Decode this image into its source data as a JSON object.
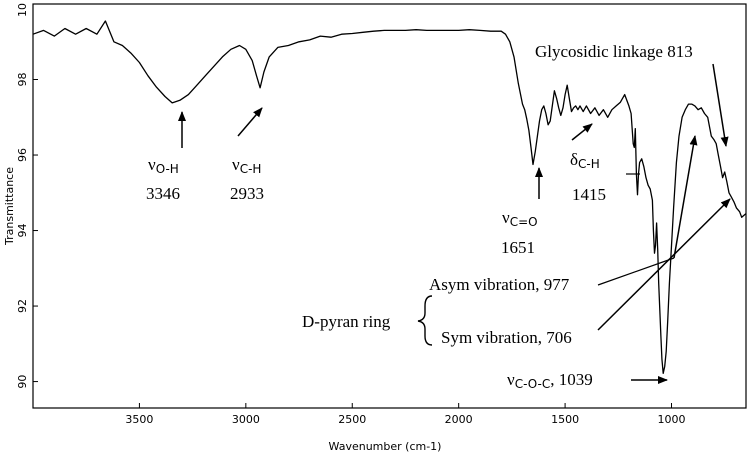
{
  "chart_data": {
    "type": "line",
    "xlabel": "Wavenumber (cm-1)",
    "ylabel": "Transmittance",
    "xlim": [
      4000,
      650
    ],
    "ylim": [
      89.3,
      100
    ],
    "xticks": [
      3500,
      3000,
      2500,
      2000,
      1500,
      1000
    ],
    "yticks": [
      90,
      92,
      94,
      96,
      98
    ],
    "top_tick_fragment": "10",
    "grid": false,
    "series": [
      {
        "points": [
          [
            4000,
            99.2
          ],
          [
            3950,
            99.3
          ],
          [
            3900,
            99.15
          ],
          [
            3850,
            99.35
          ],
          [
            3800,
            99.2
          ],
          [
            3750,
            99.35
          ],
          [
            3700,
            99.2
          ],
          [
            3660,
            99.55
          ],
          [
            3620,
            99.0
          ],
          [
            3580,
            98.9
          ],
          [
            3540,
            98.7
          ],
          [
            3500,
            98.45
          ],
          [
            3460,
            98.1
          ],
          [
            3420,
            97.8
          ],
          [
            3380,
            97.55
          ],
          [
            3346,
            97.38
          ],
          [
            3310,
            97.45
          ],
          [
            3270,
            97.6
          ],
          [
            3230,
            97.85
          ],
          [
            3190,
            98.1
          ],
          [
            3150,
            98.35
          ],
          [
            3110,
            98.6
          ],
          [
            3070,
            98.8
          ],
          [
            3030,
            98.9
          ],
          [
            3000,
            98.8
          ],
          [
            2970,
            98.5
          ],
          [
            2950,
            98.1
          ],
          [
            2933,
            97.78
          ],
          [
            2915,
            98.2
          ],
          [
            2890,
            98.6
          ],
          [
            2850,
            98.85
          ],
          [
            2800,
            98.9
          ],
          [
            2750,
            99.0
          ],
          [
            2700,
            99.05
          ],
          [
            2650,
            99.15
          ],
          [
            2600,
            99.12
          ],
          [
            2550,
            99.2
          ],
          [
            2500,
            99.22
          ],
          [
            2450,
            99.25
          ],
          [
            2400,
            99.28
          ],
          [
            2350,
            99.3
          ],
          [
            2300,
            99.3
          ],
          [
            2250,
            99.3
          ],
          [
            2200,
            99.32
          ],
          [
            2150,
            99.3
          ],
          [
            2100,
            99.3
          ],
          [
            2050,
            99.3
          ],
          [
            2000,
            99.3
          ],
          [
            1950,
            99.32
          ],
          [
            1900,
            99.3
          ],
          [
            1850,
            99.28
          ],
          [
            1800,
            99.28
          ],
          [
            1780,
            99.2
          ],
          [
            1760,
            99.0
          ],
          [
            1740,
            98.6
          ],
          [
            1720,
            97.9
          ],
          [
            1700,
            97.35
          ],
          [
            1690,
            97.2
          ],
          [
            1680,
            96.95
          ],
          [
            1670,
            96.65
          ],
          [
            1660,
            96.2
          ],
          [
            1651,
            95.75
          ],
          [
            1640,
            96.1
          ],
          [
            1630,
            96.5
          ],
          [
            1620,
            96.9
          ],
          [
            1610,
            97.2
          ],
          [
            1600,
            97.3
          ],
          [
            1590,
            97.1
          ],
          [
            1580,
            96.8
          ],
          [
            1570,
            96.9
          ],
          [
            1560,
            97.3
          ],
          [
            1550,
            97.7
          ],
          [
            1540,
            97.5
          ],
          [
            1530,
            97.25
          ],
          [
            1520,
            97.05
          ],
          [
            1510,
            97.25
          ],
          [
            1500,
            97.6
          ],
          [
            1490,
            97.85
          ],
          [
            1480,
            97.5
          ],
          [
            1470,
            97.15
          ],
          [
            1460,
            97.25
          ],
          [
            1450,
            97.3
          ],
          [
            1440,
            97.2
          ],
          [
            1430,
            97.3
          ],
          [
            1415,
            97.15
          ],
          [
            1400,
            97.3
          ],
          [
            1380,
            97.1
          ],
          [
            1360,
            97.25
          ],
          [
            1340,
            97.05
          ],
          [
            1320,
            97.2
          ],
          [
            1300,
            97.0
          ],
          [
            1280,
            97.2
          ],
          [
            1260,
            97.3
          ],
          [
            1240,
            97.4
          ],
          [
            1220,
            97.6
          ],
          [
            1200,
            97.3
          ],
          [
            1190,
            97.1
          ],
          [
            1180,
            96.3
          ],
          [
            1175,
            96.2
          ],
          [
            1170,
            96.7
          ],
          [
            1165,
            95.5
          ],
          [
            1160,
            94.95
          ],
          [
            1155,
            95.5
          ],
          [
            1150,
            95.8
          ],
          [
            1140,
            95.9
          ],
          [
            1130,
            95.7
          ],
          [
            1120,
            95.4
          ],
          [
            1110,
            95.2
          ],
          [
            1100,
            95.1
          ],
          [
            1090,
            94.8
          ],
          [
            1085,
            94.0
          ],
          [
            1080,
            93.4
          ],
          [
            1075,
            93.6
          ],
          [
            1070,
            94.2
          ],
          [
            1065,
            93.5
          ],
          [
            1060,
            92.6
          ],
          [
            1055,
            91.9
          ],
          [
            1050,
            91.2
          ],
          [
            1045,
            90.6
          ],
          [
            1039,
            90.22
          ],
          [
            1032,
            90.4
          ],
          [
            1025,
            90.8
          ],
          [
            1018,
            91.6
          ],
          [
            1010,
            92.6
          ],
          [
            1000,
            93.6
          ],
          [
            990,
            94.6
          ],
          [
            977,
            95.8
          ],
          [
            965,
            96.5
          ],
          [
            950,
            97.0
          ],
          [
            935,
            97.2
          ],
          [
            920,
            97.35
          ],
          [
            905,
            97.35
          ],
          [
            890,
            97.3
          ],
          [
            875,
            97.2
          ],
          [
            860,
            97.25
          ],
          [
            845,
            97.1
          ],
          [
            830,
            97.0
          ],
          [
            813,
            96.5
          ],
          [
            800,
            96.4
          ],
          [
            790,
            96.3
          ],
          [
            780,
            96.0
          ],
          [
            770,
            95.7
          ],
          [
            760,
            95.4
          ],
          [
            750,
            95.55
          ],
          [
            740,
            95.3
          ],
          [
            730,
            95.0
          ],
          [
            720,
            94.9
          ],
          [
            706,
            94.75
          ],
          [
            695,
            94.6
          ],
          [
            680,
            94.5
          ],
          [
            670,
            94.35
          ],
          [
            660,
            94.4
          ],
          [
            650,
            94.45
          ]
        ]
      }
    ],
    "annotations": [
      {
        "symbol": "ν",
        "sub": "O-H",
        "value": "3346"
      },
      {
        "symbol": "ν",
        "sub": "C-H",
        "value": "2933"
      },
      {
        "symbol": "ν",
        "sub": "C=O",
        "value": "1651"
      },
      {
        "symbol": "δ",
        "sub": "C-H",
        "value": "1415"
      },
      {
        "text": "Glycosidic linkage 813"
      },
      {
        "text": "Asym vibration, 977"
      },
      {
        "text": "Sym vibration, 706"
      },
      {
        "text": "D-pyran ring"
      },
      {
        "symbol": "ν",
        "sub": "C-O-C",
        "text": ", 1039"
      }
    ]
  }
}
